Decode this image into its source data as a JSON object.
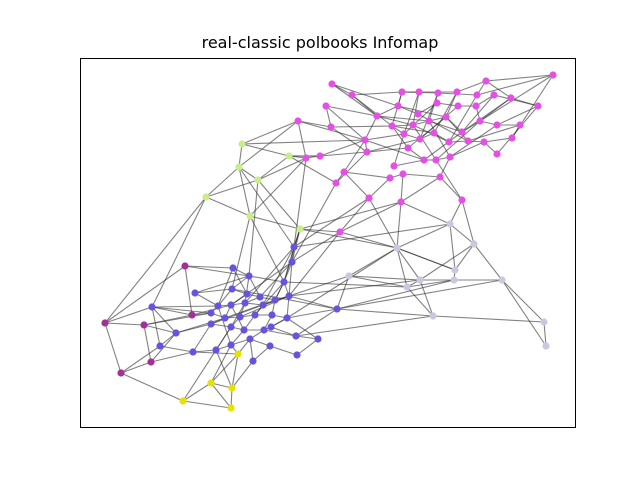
{
  "figure": {
    "title": "real-classic polbooks Infomap"
  },
  "colors": {
    "edge": "#333333",
    "communities": {
      "magenta": "#e64fe6",
      "lightgreen": "#c8ef87",
      "lavender": "#c9c8e0",
      "blue": "#6a52dc",
      "purple": "#a23099",
      "yellow": "#e6e200"
    }
  }
}
